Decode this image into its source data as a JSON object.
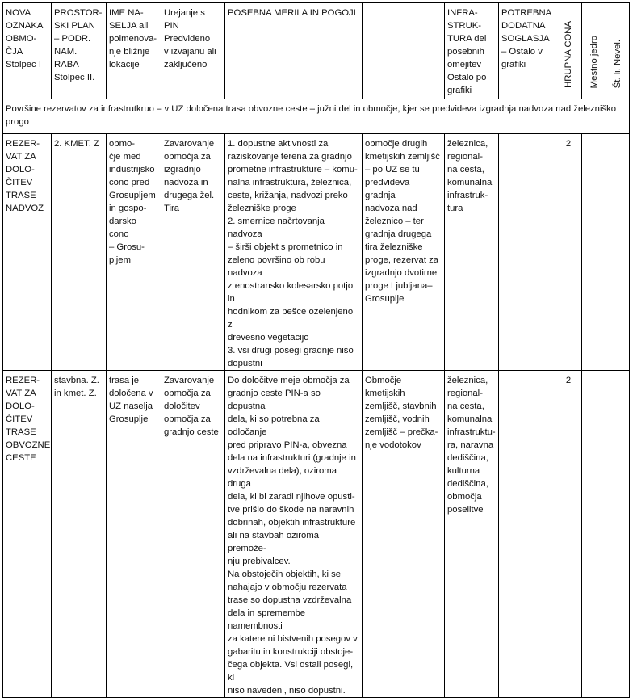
{
  "header": {
    "col1": "NOVA\nOZNAKA\nOBMO-\nČJA\nStolpec I",
    "col2": "PROSTOR-\nSKI PLAN\n– PODR.\nNAM. RABA\nStolpec II.",
    "col3": "IME NA-\nSELJA ali\npoimenova-\nnje bližnje\nlokacije",
    "col4": "Urejanje s PIN\nPredvideno\nv izvajanu ali\nzaključeno",
    "col5": "POSEBNA MERILA IN POGOJI",
    "col6": "",
    "col7": "INFRA-\nSTRUK-\nTURA del\nposebnih\nomejitev\nOstalo po\ngrafiki",
    "col8": "POTREBNA\nDODATNA\nSOGLASJA\n– Ostalo v\ngrafiki",
    "col9": "HRUPNA CONA",
    "col10": "Mestno jedro",
    "col11": "Št. li. Nevel."
  },
  "section_title": "Površine rezervatov za infrastrutkruo – v UZ določena trasa obvozne ceste – južni del in območje, kjer se predvideva izgradnja nadvoza nad železniško\nprogo",
  "rows": [
    {
      "oznaka": "REZER-\nVAT ZA\nDOLO-\nČITEV\nTRASE\nNADVOZ",
      "raba": "2. KMET. Z",
      "naselje": "obmo-\nčje med\nindustrijsko\ncono pred\nGrosupljem\nin gospo-\ndarsko cono\n– Grosu-\npljem",
      "pin": "Zavarovanje\nobmočja za\nizgradnjo\nnadvoza in\ndrugega žel.\nTira",
      "merila": "1. dopustne aktivnosti za\nraziskovanje terena za gradnjo\nprometne infrastrukture – komu-\nnalna infrastruktura, železnica,\nceste, križanja, nadvozi preko\nželezniške proge\n2. smernice načrtovanja nadvoza\n– širši objekt s prometnico in\nzeleno površino ob robu nadvoza\nz enostransko kolesarsko potjo in\nhodnikom za pešce ozelenjeno z\ndrevesno vegetacijo\n3. vsi drugi posegi gradnje niso\ndopustni",
      "opis": "območje drugih\nkmetijskih zemljišč\n– po UZ se tu\npredvideva gradnja\nnadvoza nad\nželeznico – ter\ngradnja drugega\ntira železniške\nproge, rezervat za\nizgradnjo dvotirne\nproge Ljubljana–\nGrosuplje",
      "infrastruktura": "železnica,\nregional-\nna cesta,\nkomunalna\ninfrastruk-\ntura",
      "soglasja": "",
      "hrupna_cona": "2",
      "mestno_jedro": "",
      "nevel": ""
    },
    {
      "oznaka": "REZER-\nVAT ZA\nDOLO-\nČITEV\nTRASE\nOBVOZNE\nCESTE",
      "raba": "stavbna. Z.\nin kmet. Z.",
      "naselje": "trasa je\ndoločena v\nUZ naselja\nGrosuplje",
      "pin": "Zavarovanje\nobmočja za\ndoločitev\nobmočja za\ngradnjo ceste",
      "merila": "Do določitve meje območja za\ngradnjo ceste PIN-a so dopustna\ndela, ki so potrebna za odločanje\npred pripravo PIN-a, obvezna\ndela na infrastrukturi (gradnje in\nvzdrževalna dela), oziroma druga\ndela, ki bi zaradi njihove opusti-\ntve prišlo do škode na naravnih\ndobrinah, objektih infrastrukture\nali na stavbah oziroma premože-\nnju prebivalcev.\nNa obstoječih objektih, ki se\nnahajajo v območju rezervata\ntrase so dopustna vzdrževalna\ndela in spremembe namembnosti\nza katere ni bistvenih posegov v\ngabaritu in konstrukciji obstoje-\nčega objekta. Vsi ostali posegi, ki\nniso navedeni, niso dopustni.",
      "opis": "Območje kmetijskih\nzemljišč, stavbnih\nzemljišč, vodnih\nzemljišč – prečka-\nnje vodotokov",
      "infrastruktura": "železnica,\nregional-\nna cesta,\nkomunalna\ninfrastruktu-\nra, naravna\ndediščina,\nkulturna\ndediščina,\nobmočja\nposelitve",
      "soglasja": "",
      "hrupna_cona": "2",
      "mestno_jedro": "",
      "nevel": ""
    }
  ]
}
